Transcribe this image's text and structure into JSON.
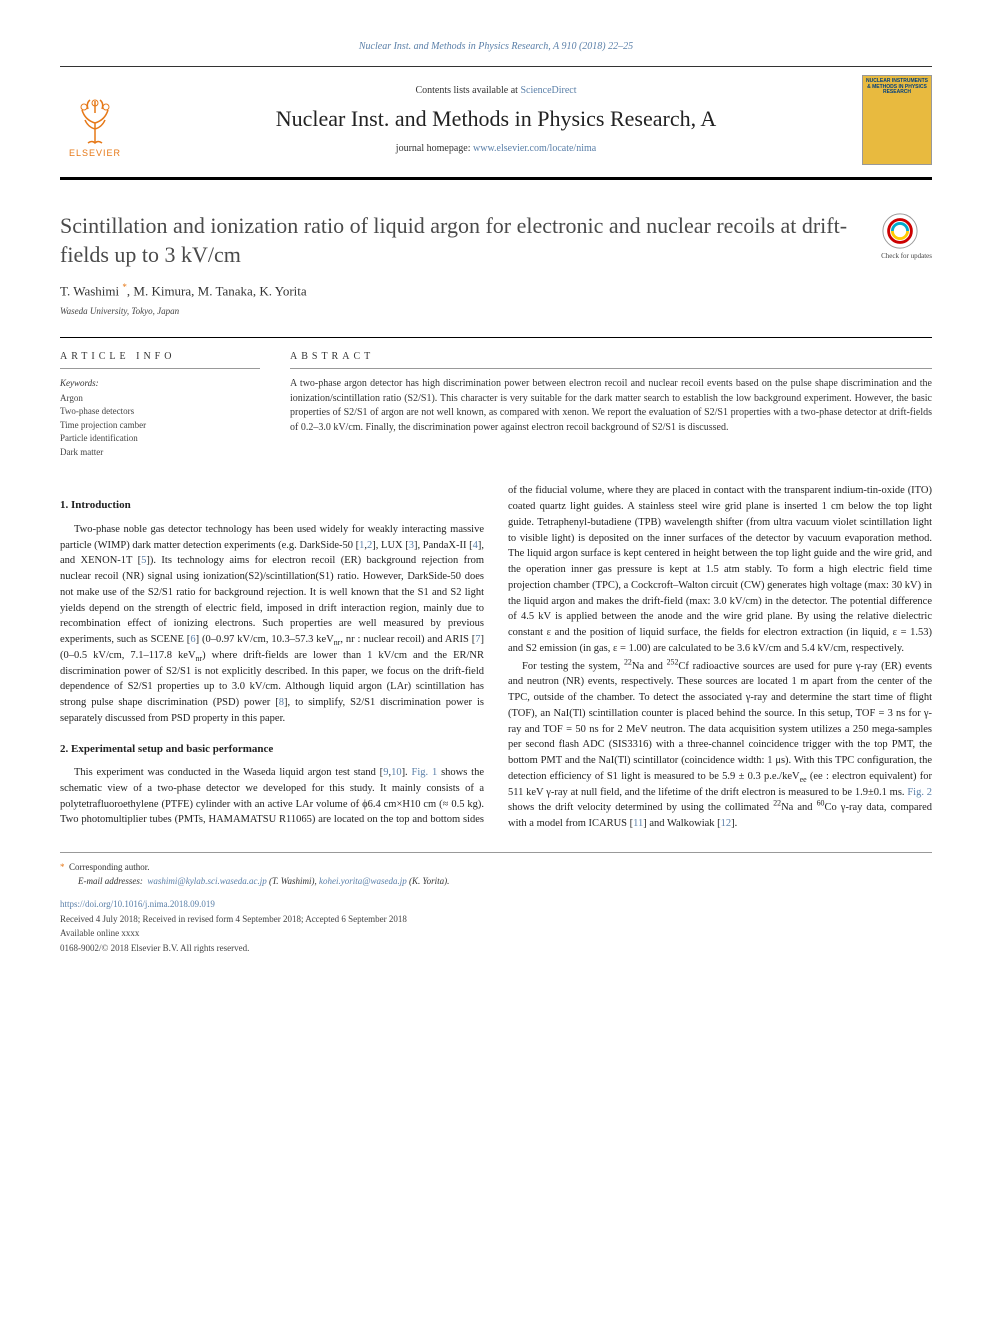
{
  "top_citation": "Nuclear Inst. and Methods in Physics Research, A 910 (2018) 22–25",
  "masthead": {
    "contents_prefix": "Contents lists available at ",
    "contents_link": "ScienceDirect",
    "journal_name": "Nuclear Inst. and Methods in Physics Research, A",
    "homepage_prefix": "journal homepage: ",
    "homepage_url": "www.elsevier.com/locate/nima",
    "publisher": "ELSEVIER",
    "cover_title": "NUCLEAR INSTRUMENTS & METHODS IN PHYSICS RESEARCH"
  },
  "article": {
    "title": "Scintillation and ionization ratio of liquid argon for electronic and nuclear recoils at drift-fields up to 3 kV/cm",
    "authors_html": "T. Washimi <span class=\"asterisk\">*</span>, M. Kimura, M. Tanaka, K. Yorita",
    "affiliation": "Waseda University, Tokyo, Japan",
    "crossmark_label": "Check for updates"
  },
  "article_info": {
    "heading": "ARTICLE INFO",
    "keywords_label": "Keywords:",
    "keywords": [
      "Argon",
      "Two-phase detectors",
      "Time projection camber",
      "Particle identification",
      "Dark matter"
    ]
  },
  "abstract": {
    "heading": "ABSTRACT",
    "text": "A two-phase argon detector has high discrimination power between electron recoil and nuclear recoil events based on the pulse shape discrimination and the ionization/scintillation ratio (S2/S1). This character is very suitable for the dark matter search to establish the low background experiment. However, the basic properties of S2/S1 of argon are not well known, as compared with xenon. We report the evaluation of S2/S1 properties with a two-phase detector at drift-fields of 0.2–3.0 kV/cm. Finally, the discrimination power against electron recoil background of S2/S1 is discussed."
  },
  "sections": {
    "s1_heading": "1. Introduction",
    "s1_body": "Two-phase noble gas detector technology has been used widely for weakly interacting massive particle (WIMP) dark matter detection experiments (e.g. DarkSide-50 [<a>1</a>,<a>2</a>], LUX [<a>3</a>], PandaX-II [<a>4</a>], and XENON-1T [<a>5</a>]). Its technology aims for electron recoil (ER) background rejection from nuclear recoil (NR) signal using ionization(S2)/scintillation(S1) ratio. However, DarkSide-50 does not make use of the S2/S1 ratio for background rejection. It is well known that the S1 and S2 light yields depend on the strength of electric field, imposed in drift interaction region, mainly due to recombination effect of ionizing electrons. Such properties are well measured by previous experiments, such as SCENE [<a>6</a>] (0–0.97 kV/cm, 10.3–57.3 keV<sub>nr</sub>, nr : nuclear recoil) and ARIS [<a>7</a>] (0–0.5 kV/cm, 7.1–117.8 keV<sub>nr</sub>) where drift-fields are lower than 1 kV/cm and the ER/NR discrimination power of S2/S1 is not explicitly described. In this paper, we focus on the drift-field dependence of S2/S1 properties up to 3.0 kV/cm. Although liquid argon (LAr) scintillation has strong pulse shape discrimination (PSD) power [<a>8</a>], to simplify, S2/S1 discrimination power is separately discussed from PSD property in this paper.",
    "s2_heading": "2. Experimental setup and basic performance",
    "s2_body_p1": "This experiment was conducted in the Waseda liquid argon test stand [<a>9</a>,<a>10</a>]. <a>Fig. 1</a> shows the schematic view of a two-phase detector we developed for this study. It mainly consists of a polytetrafluoroethylene (PTFE) cylinder with an active LAr volume of ϕ6.4 cm×H10 cm (≈ 0.5 kg). Two photomultiplier tubes (PMTs, HAMAMATSU R11065) are located on the top and bottom sides of the fiducial volume, where they are placed in contact with the transparent indium-tin-oxide (ITO) coated quartz light guides. A stainless steel wire grid plane is inserted 1 cm below the top light guide. Tetraphenyl-butadiene (TPB) wavelength shifter (from ultra vacuum violet scintillation light to visible light) is deposited on the inner surfaces of the detector by vacuum evaporation method. The liquid argon surface is kept centered in height between the top light guide and the wire grid, and the operation inner gas pressure is kept at 1.5 atm stably. To form a high electric field time projection chamber (TPC), a Cockcroft–Walton circuit (CW) generates high voltage (max: 30 kV) in the liquid argon and makes the drift-field (max: 3.0 kV/cm) in the detector. The potential difference of 4.5 kV is applied between the anode and the wire grid plane. By using the relative dielectric constant ε and the position of liquid surface, the fields for electron extraction (in liquid, ε = 1.53) and S2 emission (in gas, ε = 1.00) are calculated to be 3.6 kV/cm and 5.4 kV/cm, respectively.",
    "s2_body_p2": "For testing the system, <sup>22</sup>Na and <sup>252</sup>Cf radioactive sources are used for pure γ-ray (ER) events and neutron (NR) events, respectively. These sources are located 1 m apart from the center of the TPC, outside of the chamber. To detect the associated γ-ray and determine the start time of flight (TOF), an NaI(Tl) scintillation counter is placed behind the source. In this setup, TOF = 3 ns for γ-ray and TOF = 50 ns for 2 MeV neutron. The data acquisition system utilizes a 250 mega-samples per second flash ADC (SIS3316) with a three-channel coincidence trigger with the top PMT, the bottom PMT and the NaI(Tl) scintillator (coincidence width: 1 μs). With this TPC configuration, the detection efficiency of S1 light is measured to be 5.9 ± 0.3 p.e./keV<sub>ee</sub> (ee : electron equivalent) for 511 keV γ-ray at null field, and the lifetime of the drift electron is measured to be 1.9±0.1 ms. <a>Fig. 2</a> shows the drift velocity determined by using the collimated <sup>22</sup>Na and <sup>60</sup>Co γ-ray data, compared with a model from ICARUS [<a>11</a>] and Walkowiak [<a>12</a>]."
  },
  "footer": {
    "corresp_marker": "*",
    "corresp_text": "Corresponding author.",
    "email_label": "E-mail addresses:",
    "email1": "washimi@kylab.sci.waseda.ac.jp",
    "email1_name": " (T. Washimi), ",
    "email2": "kohei.yorita@waseda.jp",
    "email2_name": " (K. Yorita).",
    "doi": "https://doi.org/10.1016/j.nima.2018.09.019",
    "dates": "Received 4 July 2018; Received in revised form 4 September 2018; Accepted 6 September 2018",
    "available": "Available online xxxx",
    "copyright": "0168-9002/© 2018 Elsevier B.V. All rights reserved."
  },
  "colors": {
    "link": "#5a7fa8",
    "elsevier_orange": "#e67817",
    "cover_bg": "#e8ba3f",
    "text": "#222222",
    "rule": "#000000"
  }
}
